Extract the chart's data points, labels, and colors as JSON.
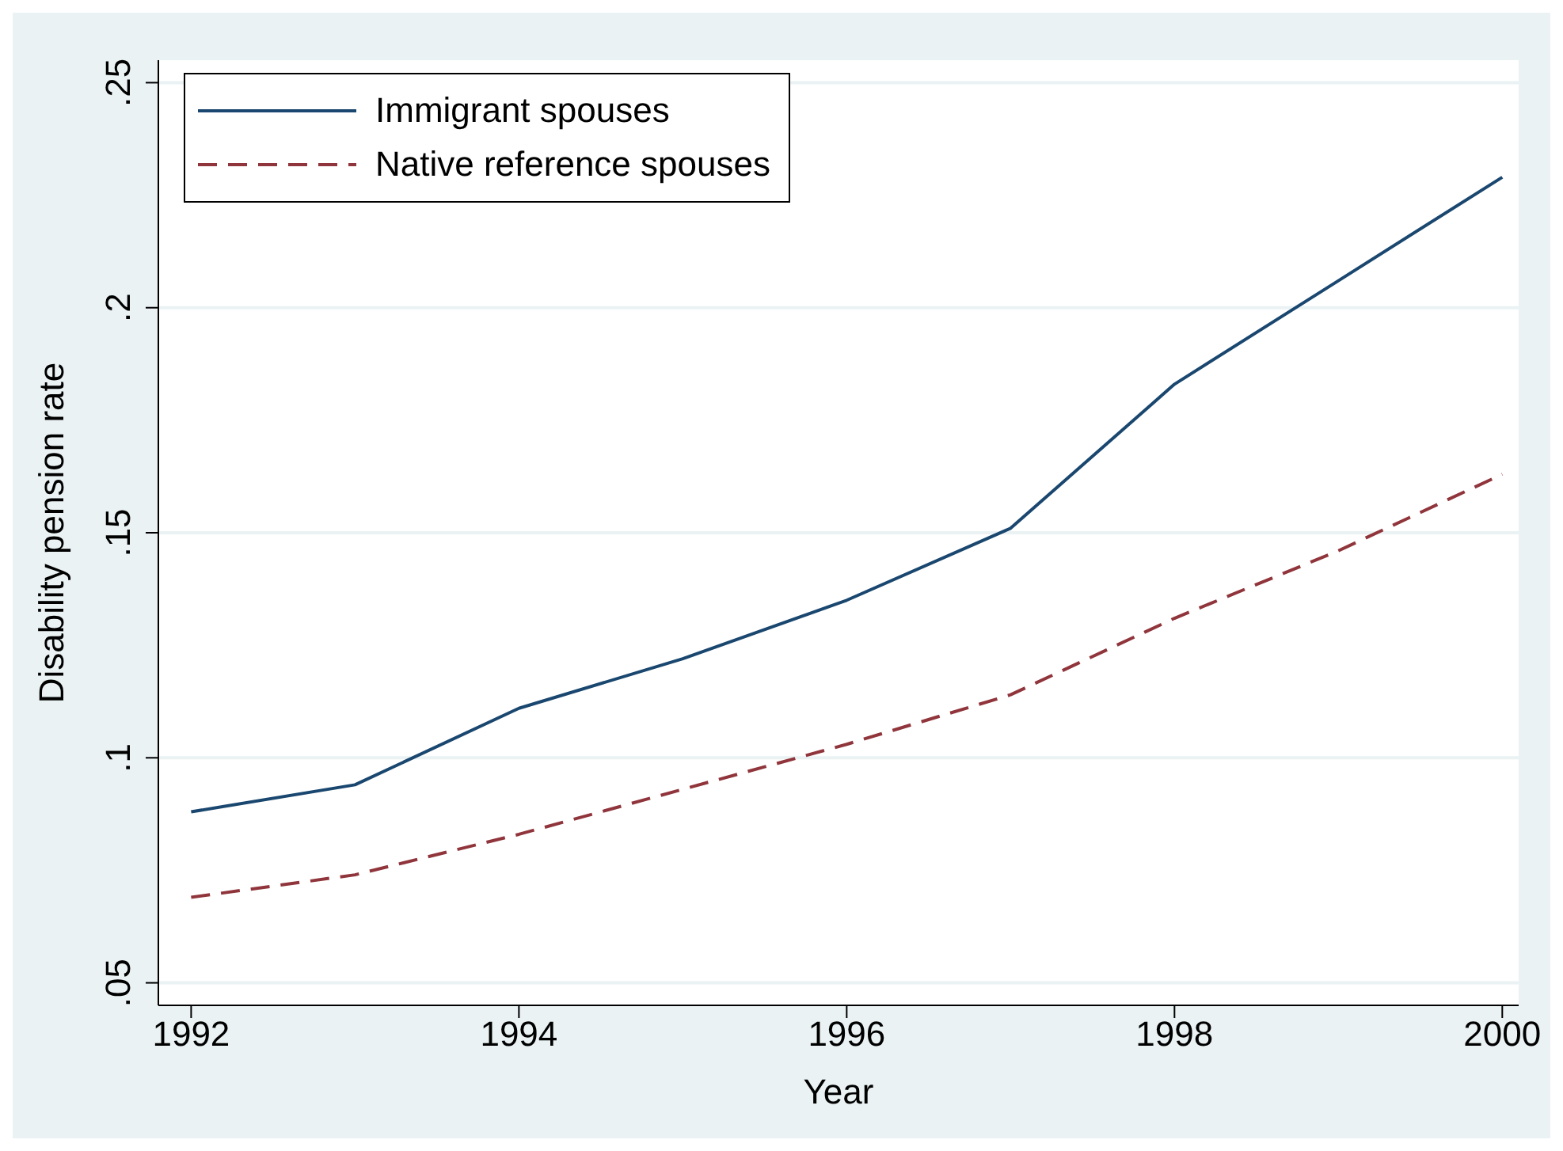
{
  "chart_data": {
    "type": "line",
    "xlabel": "Year",
    "ylabel": "Disability pension rate",
    "x": [
      1992,
      1993,
      1994,
      1995,
      1996,
      1997,
      1998,
      1999,
      2000
    ],
    "series": [
      {
        "name": "Immigrant spouses",
        "color": "#1a476f",
        "line_style": "solid",
        "values": [
          0.088,
          0.094,
          0.111,
          0.122,
          0.135,
          0.151,
          0.183,
          0.206,
          0.229
        ]
      },
      {
        "name": "Native reference spouses",
        "color": "#90353b",
        "line_style": "dashed",
        "values": [
          0.069,
          0.074,
          0.083,
          0.093,
          0.103,
          0.114,
          0.131,
          0.146,
          0.163
        ]
      }
    ],
    "xlim": [
      1991.8,
      2000.1
    ],
    "xticks": [
      1992,
      1994,
      1996,
      1998,
      2000
    ],
    "ylim": [
      0.045,
      0.255
    ],
    "yticks": [
      {
        "value": 0.05,
        "label": ".05"
      },
      {
        "value": 0.1,
        "label": ".1"
      },
      {
        "value": 0.15,
        "label": ".15"
      },
      {
        "value": 0.2,
        "label": ".2"
      },
      {
        "value": 0.25,
        "label": ".25"
      }
    ],
    "grid": "y",
    "legend": "top left",
    "marker": "none"
  }
}
